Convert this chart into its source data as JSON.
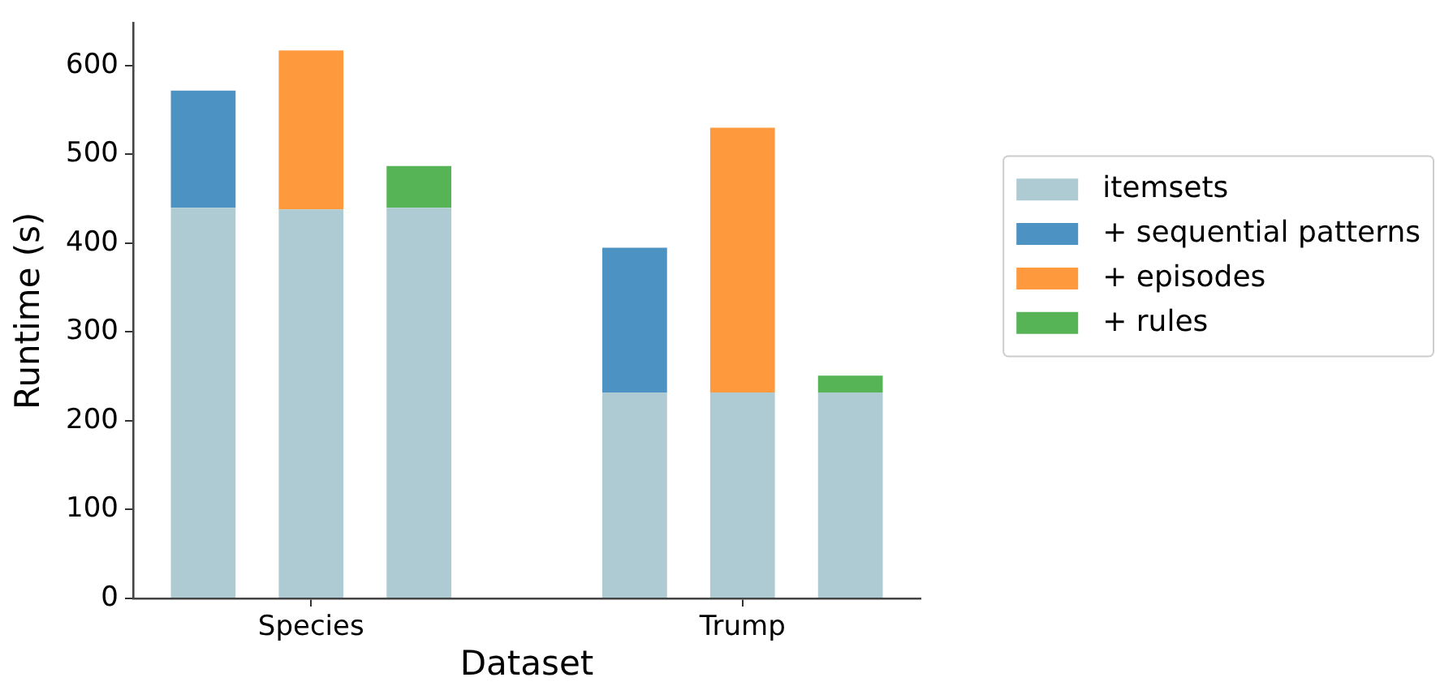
{
  "chart_data": {
    "type": "bar",
    "stacked": true,
    "xlabel": "Dataset",
    "ylabel": "Runtime (s)",
    "categories": [
      null,
      "Species",
      null,
      null,
      null,
      "Trump",
      null
    ],
    "series": [
      {
        "name": "itemsets",
        "color": "#aecbd3",
        "values": [
          440,
          438,
          440,
          null,
          232,
          232,
          232
        ]
      },
      {
        "name": "+ sequential patterns",
        "color": "#4c92c3",
        "values": [
          132,
          null,
          null,
          null,
          163,
          null,
          null
        ]
      },
      {
        "name": "+ episodes",
        "color": "#ff993e",
        "values": [
          null,
          179,
          null,
          null,
          null,
          298,
          null
        ]
      },
      {
        "name": "+ rules",
        "color": "#56b356",
        "values": [
          null,
          null,
          47,
          null,
          null,
          null,
          19
        ]
      }
    ],
    "ylim": [
      0,
      648
    ],
    "yticks": [
      0,
      100,
      200,
      300,
      400,
      500,
      600
    ],
    "legend": "right"
  }
}
